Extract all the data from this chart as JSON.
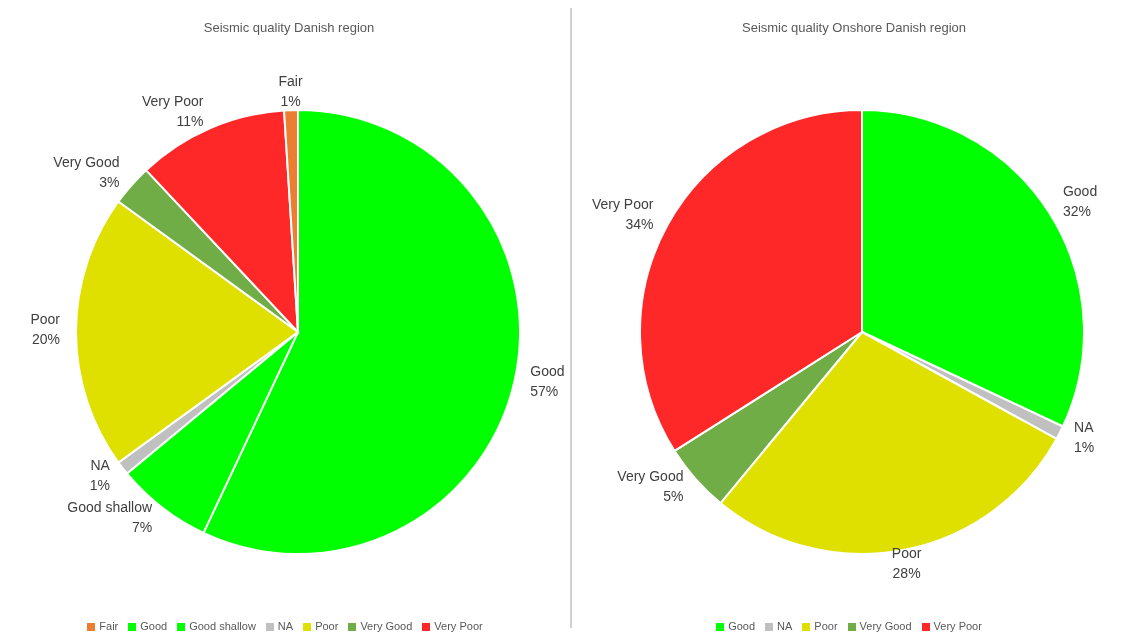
{
  "chart_data": [
    {
      "type": "pie",
      "title": "Seismic quality Danish region",
      "categories": [
        "Good",
        "Good shallow",
        "NA",
        "Poor",
        "Very Good",
        "Very Poor",
        "Fair"
      ],
      "values": [
        57,
        7,
        1,
        20,
        3,
        11,
        1
      ],
      "value_labels": [
        "57%",
        "7%",
        "1%",
        "20%",
        "3%",
        "11%",
        "1%"
      ],
      "colors": [
        "#00ff00",
        "#00ff00",
        "#c0c0c0",
        "#e0e000",
        "#70ad47",
        "#ff2828",
        "#ed7d31"
      ],
      "legend": "bottom"
    },
    {
      "type": "pie",
      "title": "Seismic quality Onshore Danish region",
      "categories": [
        "Good",
        "NA",
        "Poor",
        "Very Good",
        "Very Poor"
      ],
      "values": [
        32,
        1,
        28,
        5,
        34
      ],
      "value_labels": [
        "32%",
        "1%",
        "28%",
        "5%",
        "34%"
      ],
      "colors": [
        "#00ff00",
        "#c0c0c0",
        "#e0e000",
        "#70ad47",
        "#ff2828"
      ],
      "legend": "bottom"
    }
  ]
}
